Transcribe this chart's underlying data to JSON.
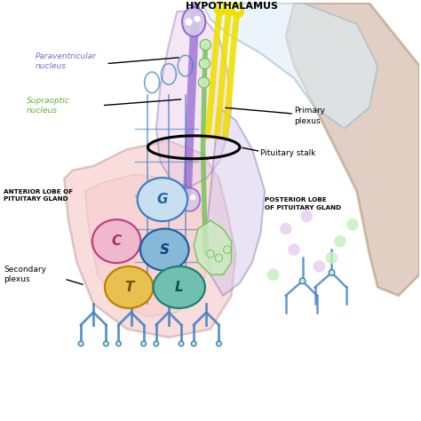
{
  "bg_color": "#ffffff",
  "hypothalamus_label": "Hypothalamus",
  "paraventricular_label": "Paraventricular\nnucleus",
  "supraoptic_label": "Supraoptic\nnucleus",
  "primary_plexus_label": "Primary\nplexus",
  "pituitary_stalk_label": "Pituitary stalk",
  "posterior_lobe_label": "Posterior Lobe\nof Pituitary Gland",
  "anterior_lobe_label": "Anterior Lobe of\nPituitary Gland",
  "secondary_plexus_label": "Secondary\nplexus",
  "paraventricular_color": "#7b68c8",
  "supraoptic_color": "#6aaa3a",
  "anterior_lobe_fill": "#f5c0c0",
  "anterior_lobe_stroke": "#c8a0a0",
  "posterior_lobe_fill": "#d4c8e8",
  "posterior_lobe_stroke": "#9080c0",
  "stalk_fill": "#e8c8e8",
  "stalk_stroke": "#9080c0",
  "brain_fill": "#ddeef8",
  "brain_stroke": "#a0b8c8",
  "skin_fill": "#c8a890",
  "skin_stroke": "#b09070",
  "yellow_nerve_color": "#f0e000",
  "purple_nerve_color": "#9060d0",
  "green_nerve_color": "#70c050",
  "blue_vessel_color": "#4080c0",
  "cell_G_fill": "#c8dff0",
  "cell_G_stroke": "#4080c0",
  "cell_C_fill": "#f0b8cc",
  "cell_C_stroke": "#c04080",
  "cell_S_fill": "#88b8d8",
  "cell_S_stroke": "#2060a0",
  "cell_T_fill": "#e8c050",
  "cell_T_stroke": "#c08000",
  "cell_L_fill": "#70c0b0",
  "cell_L_stroke": "#208070",
  "release_purple": "#e8d0f0",
  "release_green": "#c8f0c0"
}
